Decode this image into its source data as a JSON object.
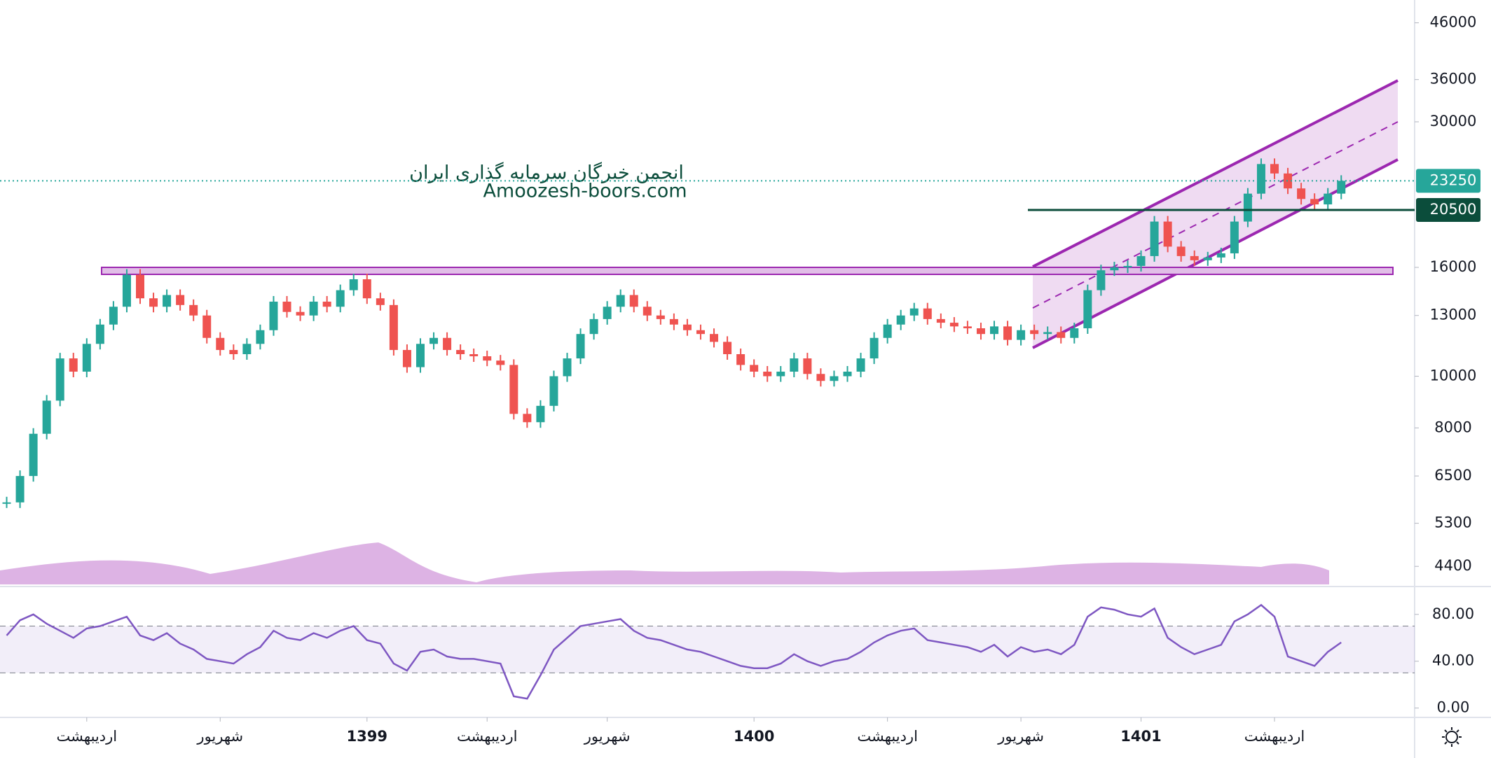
{
  "watermark": {
    "line1": "انجمن خبرگان سرمایه گذاری ایران",
    "line2": "Amoozesh-boors.com"
  },
  "chart_data": [
    {
      "type": "candlestick",
      "log_scale": true,
      "up_color": "#26a69a",
      "down_color": "#ef5350",
      "values": [
        5800,
        6500,
        7800,
        9000,
        10800,
        10200,
        11500,
        12500,
        13500,
        15500,
        14000,
        13500,
        14200,
        13600,
        13000,
        11800,
        11200,
        11000,
        11500,
        12200,
        13800,
        13200,
        13000,
        13800,
        13500,
        14500,
        15200,
        14000,
        13600,
        11200,
        10400,
        11500,
        11800,
        11200,
        11000,
        10900,
        10700,
        10500,
        8500,
        8200,
        8800,
        10000,
        10800,
        12000,
        12800,
        13500,
        14200,
        13500,
        13000,
        12800,
        12500,
        12200,
        12000,
        11600,
        11000,
        10500,
        10200,
        10000,
        10200,
        10800,
        10100,
        9800,
        10000,
        10200,
        10800,
        11800,
        12500,
        13000,
        13400,
        12800,
        12600,
        12400,
        12300,
        12000,
        12400,
        11700,
        12200,
        12000,
        12100,
        11800,
        12300,
        14500,
        15800,
        16000,
        16100,
        16800,
        19500,
        17500,
        16800,
        16500,
        16700,
        17000,
        19500,
        22000,
        25000,
        24000,
        22500,
        21500,
        21000,
        22000,
        23250
      ],
      "xlim": [
        -0.5,
        105.5
      ],
      "xticks": [
        {
          "value": 6,
          "label": "اردیبهشت"
        },
        {
          "value": 16,
          "label": "شهریور"
        },
        {
          "value": 27,
          "label": "1399"
        },
        {
          "value": 36,
          "label": "اردیبهشت"
        },
        {
          "value": 45,
          "label": "شهریور"
        },
        {
          "value": 56,
          "label": "1400"
        },
        {
          "value": 66,
          "label": "اردیبهشت"
        },
        {
          "value": 76,
          "label": "شهریور"
        },
        {
          "value": 85,
          "label": "1401"
        },
        {
          "value": 95,
          "label": "اردیبهشت"
        }
      ],
      "ylim": [
        4070,
        50760
      ],
      "yticks": [
        4400,
        5300,
        6500,
        8000,
        10000,
        13000,
        16000,
        30000,
        36000,
        46000
      ],
      "price_lines": [
        {
          "value": 23250,
          "color": "#26a69a"
        },
        {
          "value": 20500,
          "color": "#0b4d3b"
        }
      ]
    },
    {
      "type": "line",
      "color": "#7e57c2",
      "values": [
        62,
        75,
        80,
        72,
        66,
        60,
        68,
        70,
        74,
        78,
        62,
        58,
        64,
        55,
        50,
        42,
        40,
        38,
        46,
        52,
        66,
        60,
        58,
        64,
        60,
        66,
        70,
        58,
        55,
        38,
        32,
        48,
        50,
        44,
        42,
        42,
        40,
        38,
        10,
        8,
        28,
        50,
        60,
        70,
        72,
        74,
        76,
        66,
        60,
        58,
        54,
        50,
        48,
        44,
        40,
        36,
        34,
        34,
        38,
        46,
        40,
        36,
        40,
        42,
        48,
        56,
        62,
        66,
        68,
        58,
        56,
        54,
        52,
        48,
        54,
        44,
        52,
        48,
        50,
        46,
        54,
        78,
        86,
        84,
        80,
        78,
        85,
        60,
        52,
        46,
        50,
        54,
        74,
        80,
        88,
        78,
        44,
        40,
        36,
        48,
        56
      ],
      "xlim": [
        -0.5,
        105.5
      ],
      "ylim": [
        -8,
        102
      ],
      "yticks": [
        {
          "value": 0,
          "label": "0.00"
        },
        {
          "value": 40,
          "label": "40.00"
        },
        {
          "value": 80,
          "label": "80.00"
        }
      ],
      "band": [
        30,
        70
      ]
    }
  ]
}
